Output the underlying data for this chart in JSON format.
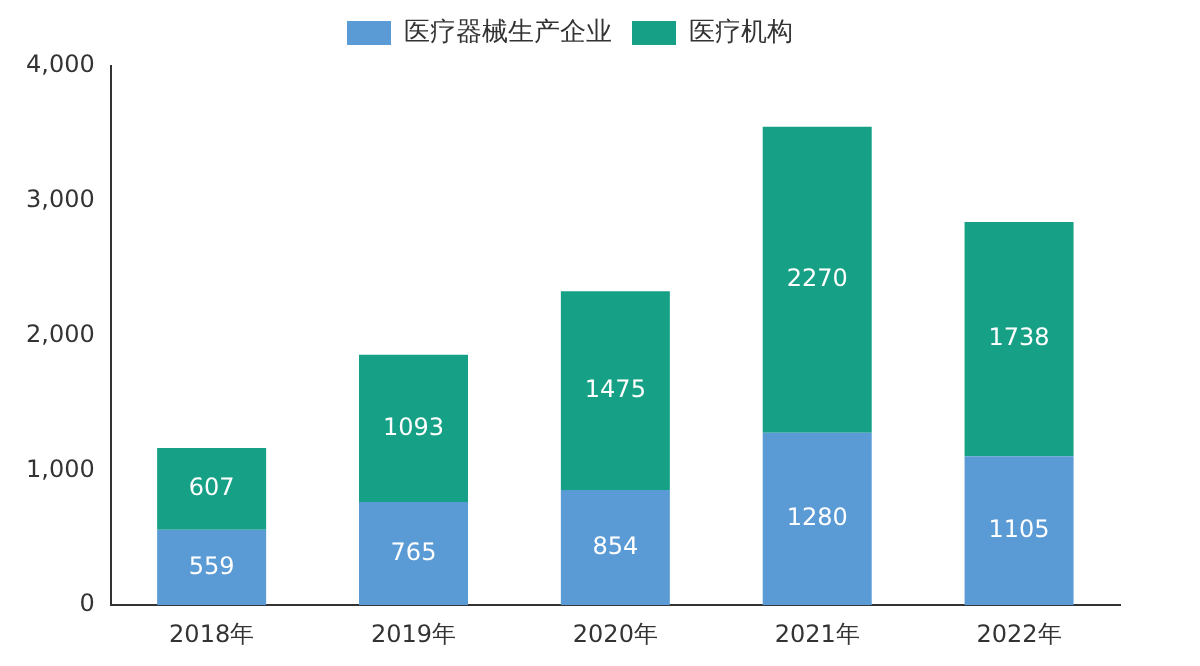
{
  "chart_data": {
    "type": "bar",
    "stacked": true,
    "categories": [
      "2018年",
      "2019年",
      "2020年",
      "2021年",
      "2022年"
    ],
    "series": [
      {
        "name": "医疗器械生产企业",
        "color": "#5b9bd5",
        "values": [
          559,
          765,
          854,
          1280,
          1105
        ]
      },
      {
        "name": "医疗机构",
        "color": "#16a085",
        "values": [
          607,
          1093,
          1475,
          2270,
          1738
        ]
      }
    ],
    "ylim": [
      0,
      4000
    ],
    "yticks": [
      0,
      {
        "value": 1000,
        "label": "1,000"
      },
      {
        "value": 2000,
        "label": "2,000"
      },
      {
        "value": 3000,
        "label": "3,000"
      },
      {
        "value": 4000,
        "label": "4,000"
      }
    ],
    "grid": false,
    "legend": "top",
    "data_labels": true
  }
}
